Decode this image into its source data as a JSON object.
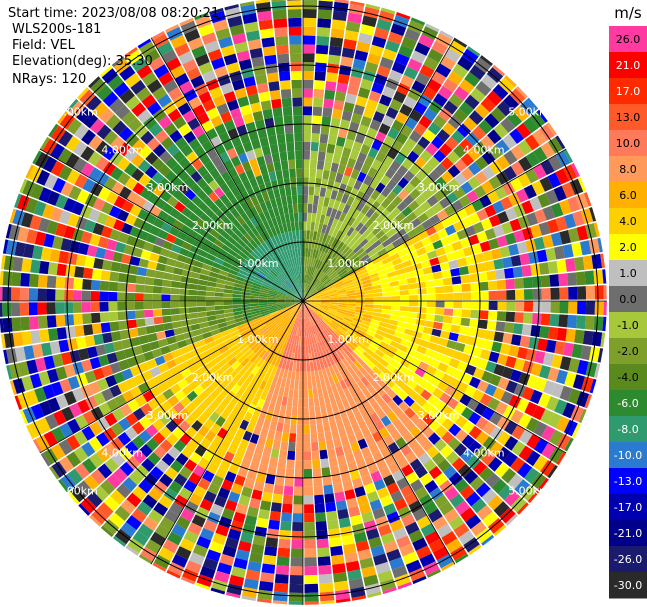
{
  "header": {
    "start_time": "Start time: 2023/08/08 08:20:21",
    "instrument": "WLS200s-181",
    "field": "Field: VEL",
    "elevation": "Elevation(deg): 35.30",
    "nrays": "NRays: 120"
  },
  "chart_data": {
    "type": "heatmap",
    "projection": "polar-ppi",
    "field": "VEL",
    "units": "m/s",
    "nrays": 120,
    "range_rings_km": [
      1,
      2,
      3,
      4,
      5
    ],
    "ring_labels": [
      "1.00km",
      "2.00km",
      "3.00km",
      "4.00km",
      "5.00km"
    ],
    "colorbar": {
      "title": "m/s",
      "ticks": [
        "26.0",
        "21.0",
        "17.0",
        "13.0",
        "10.0",
        "8.0",
        "6.0",
        "4.0",
        "2.0",
        "1.0",
        "0.0",
        "-1.0",
        "-2.0",
        "-4.0",
        "-6.0",
        "-8.0",
        "-10.0",
        "-13.0",
        "-17.0",
        "-21.0",
        "-26.0",
        "-30.0"
      ],
      "colors": [
        "#ff3aa0",
        "#ff0000",
        "#ff2a00",
        "#ff5a2a",
        "#ff7a5a",
        "#ff9a5a",
        "#ffb000",
        "#ffd000",
        "#ffff00",
        "#bfbfbf",
        "#6e6e6e",
        "#a6c83a",
        "#7ea02a",
        "#5a8a1e",
        "#2e8a2e",
        "#2e9a6e",
        "#2a7ad0",
        "#0000ff",
        "#0000b0",
        "#00008a",
        "#1a1a6e",
        "#2a2a2a"
      ]
    },
    "pattern": {
      "inner_core_km": 0.5,
      "near_field_sector_mean_velocity": [
        {
          "azimuth_from_deg": 0,
          "azimuth_to_deg": 60,
          "value": -1
        },
        {
          "azimuth_from_deg": 60,
          "azimuth_to_deg": 135,
          "value": 3
        },
        {
          "azimuth_from_deg": 135,
          "azimuth_to_deg": 200,
          "value": 8
        },
        {
          "azimuth_from_deg": 200,
          "azimuth_to_deg": 250,
          "value": 4
        },
        {
          "azimuth_from_deg": 250,
          "azimuth_to_deg": 290,
          "value": -3
        },
        {
          "azimuth_from_deg": 290,
          "azimuth_to_deg": 360,
          "value": -6
        }
      ],
      "clean_signal_limit_km": 3.3,
      "noise_beyond_km": 3.3
    }
  }
}
